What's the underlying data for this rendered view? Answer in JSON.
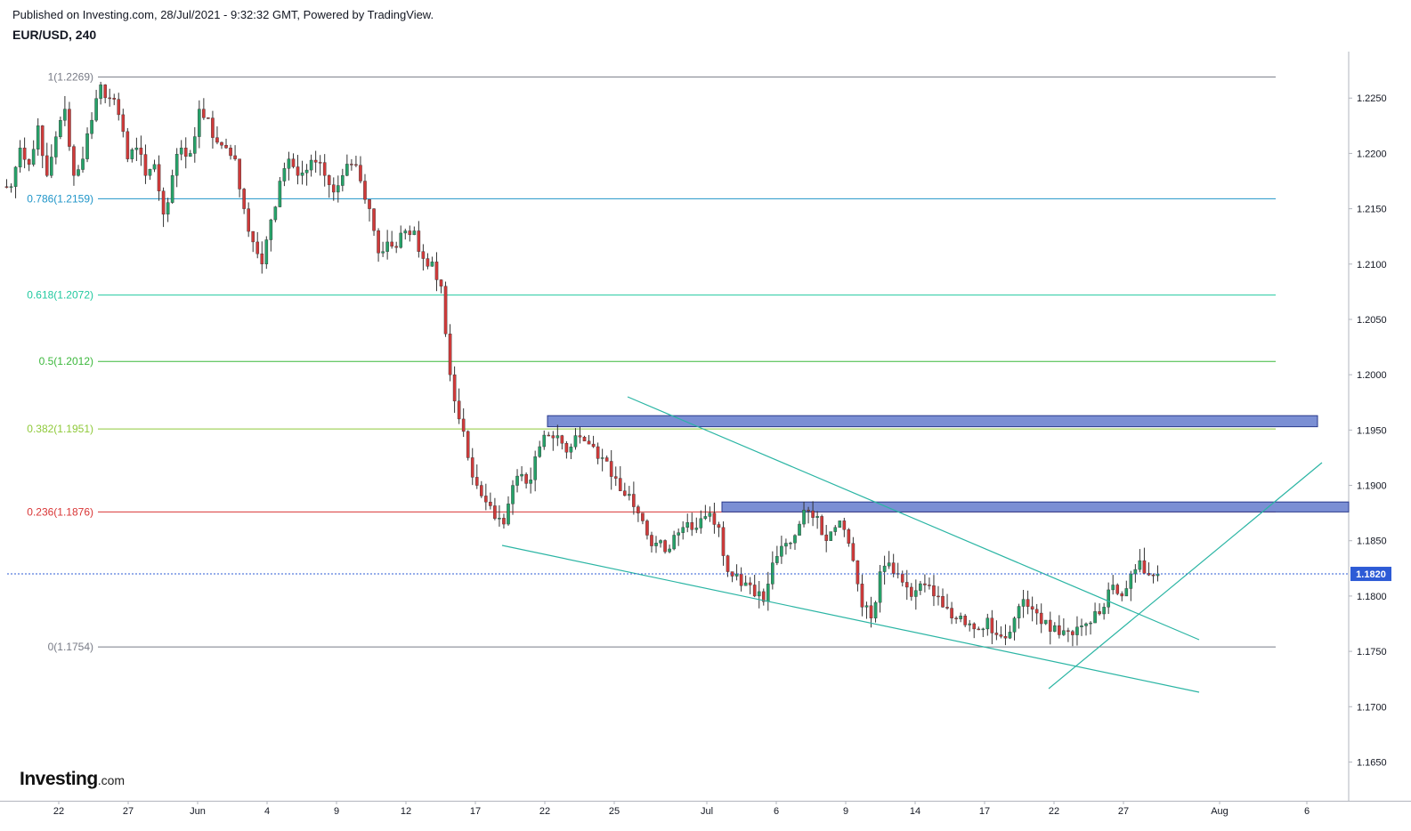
{
  "header": {
    "published": "Published on Investing.com, 28/Jul/2021 - 9:32:32 GMT, Powered by TradingView.",
    "symbol": "EUR/USD, 240"
  },
  "logo": {
    "brand": "Investing",
    "tld": ".com"
  },
  "chart_data": {
    "type": "candlestick",
    "symbol": "EUR/USD",
    "interval": "240",
    "y_axis": {
      "range": [
        1.1615,
        1.2292
      ],
      "ticks": [
        "1.2250",
        "1.2200",
        "1.2150",
        "1.2100",
        "1.2050",
        "1.2000",
        "1.1950",
        "1.1900",
        "1.1850",
        "1.1800",
        "1.1750",
        "1.1700",
        "1.1650"
      ],
      "current_price": "1.1820"
    },
    "x_axis": {
      "ticks": [
        "22",
        "27",
        "Jun",
        "4",
        "9",
        "12",
        "17",
        "22",
        "25",
        "Jul",
        "6",
        "9",
        "14",
        "17",
        "22",
        "27",
        "Aug",
        "6"
      ]
    },
    "fibonacci_levels": [
      {
        "label": "1(1.2269)",
        "price": 1.2269,
        "color": "#787b86"
      },
      {
        "label": "0.786(1.2159)",
        "price": 1.2159,
        "color": "#2196c9"
      },
      {
        "label": "0.618(1.2072)",
        "price": 1.2072,
        "color": "#22c9a0"
      },
      {
        "label": "0.5(1.2012)",
        "price": 1.2012,
        "color": "#3cb83c"
      },
      {
        "label": "0.382(1.1951)",
        "price": 1.1951,
        "color": "#8fc93a"
      },
      {
        "label": "0.236(1.1876)",
        "price": 1.1876,
        "color": "#d93636"
      },
      {
        "label": "0(1.1754)",
        "price": 1.1754,
        "color": "#787b86"
      }
    ],
    "resistance_zones": [
      {
        "top": 1.1963,
        "bottom": 1.1953,
        "color": "#7b8fd4"
      },
      {
        "top": 1.1885,
        "bottom": 1.1876,
        "color": "#7b8fd4"
      }
    ],
    "colors": {
      "up": "#26a269",
      "down": "#d03a3a",
      "trendline": "#2bb5a4",
      "price_line": "#2d5bd6"
    },
    "price_path": [
      1.217,
      1.2205,
      1.219,
      1.2225,
      1.218,
      1.2215,
      1.224,
      1.218,
      1.2195,
      1.223,
      1.2262,
      1.225,
      1.2235,
      1.2195,
      1.2205,
      1.218,
      1.219,
      1.2145,
      1.218,
      1.2205,
      1.22,
      1.224,
      1.2232,
      1.221,
      1.2205,
      1.2195,
      1.215,
      1.212,
      1.21,
      1.214,
      1.2175,
      1.2195,
      1.218,
      1.2185,
      1.2192,
      1.218,
      1.2165,
      1.218,
      1.219,
      1.2175,
      1.215,
      1.211,
      1.212,
      1.2115,
      1.213,
      1.213,
      1.2105,
      1.2102,
      1.208,
      1.2,
      1.196,
      1.1925,
      1.19,
      1.1885,
      1.187,
      1.1865,
      1.19,
      1.191,
      1.1905,
      1.1935,
      1.1945,
      1.1945,
      1.193,
      1.1945,
      1.194,
      1.1935,
      1.1925,
      1.1908,
      1.1895,
      1.1892,
      1.1875,
      1.1855,
      1.1848,
      1.184,
      1.1855,
      1.1862,
      1.186,
      1.187,
      1.1875,
      1.1862,
      1.1822,
      1.182,
      1.1812,
      1.18,
      1.1795,
      1.183,
      1.1845,
      1.1848,
      1.1865,
      1.1877,
      1.1872,
      1.185,
      1.1862,
      1.186,
      1.1832,
      1.179,
      1.178,
      1.1822,
      1.183,
      1.182,
      1.1808,
      1.1805,
      1.181,
      1.18,
      1.179,
      1.178,
      1.1782,
      1.1775,
      1.177,
      1.178,
      1.1765,
      1.1762,
      1.178,
      1.1797,
      1.1788,
      1.1775,
      1.1768,
      1.1765,
      1.1768,
      1.1772,
      1.1775,
      1.1786,
      1.179,
      1.181,
      1.18,
      1.182,
      1.1832,
      1.1819,
      1.182
    ],
    "trendlines": [
      {
        "from": {
          "date": "Jun 25",
          "price": 1.1975
        },
        "to": {
          "date": "Jul 30",
          "price": 1.1765
        }
      },
      {
        "from": {
          "date": "Jun 17",
          "price": 1.1845
        },
        "to": {
          "date": "Jul 30",
          "price": 1.1718
        }
      },
      {
        "from": {
          "date": "Jul 22",
          "price": 1.172
        },
        "to": {
          "date": "Aug 6",
          "price": 1.1918
        }
      }
    ]
  }
}
